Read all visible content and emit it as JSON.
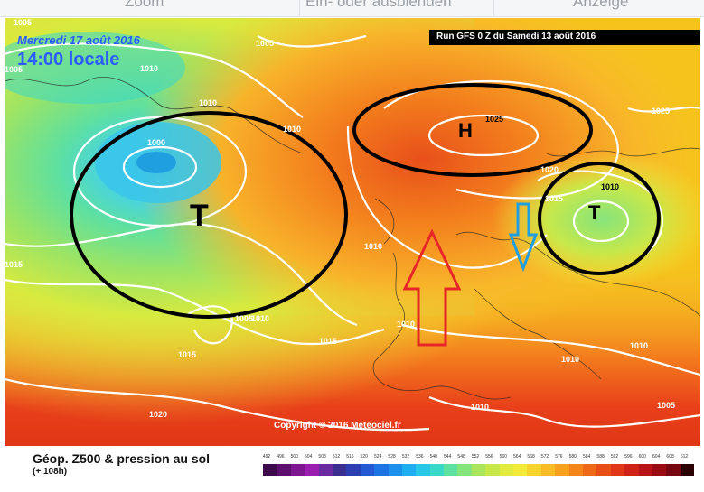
{
  "toolbar": {
    "items": [
      "Zoom",
      "Ein- oder ausblenden",
      "Anzeige"
    ]
  },
  "map": {
    "date_line": "Mercredi 17 août 2016",
    "time_line": "14:00 locale",
    "run_info": "Run GFS 0 Z du Samedi 13 août 2016",
    "copyright": "Copyright © 2016 Meteociel.fr",
    "high_symbol": "H",
    "low_symbol": "T",
    "isobar_labels": [
      "1005",
      "1005",
      "1010",
      "1005",
      "1000",
      "1010",
      "1010",
      "1025",
      "1025",
      "1020",
      "1015",
      "1010",
      "1015",
      "1010",
      "1010",
      "1005",
      "1010",
      "1015",
      "1015",
      "1010",
      "1010",
      "1020",
      "1010",
      "1005"
    ],
    "colors": {
      "background": "#f5c31a",
      "circle": "#000000",
      "arrow_up": "#e8262a",
      "arrow_down": "#1f9fe0",
      "isobar": "#ffffff",
      "date_text": "#2a5cff",
      "time_text": "#2a5cff"
    }
  },
  "legend": {
    "title": "Géop. Z500 & pression au sol",
    "subtitle": "(+ 108h)",
    "scale_values": [
      "492",
      "496",
      "500",
      "504",
      "508",
      "512",
      "516",
      "520",
      "524",
      "528",
      "532",
      "536",
      "540",
      "544",
      "548",
      "552",
      "556",
      "560",
      "564",
      "568",
      "572",
      "576",
      "580",
      "584",
      "588",
      "592",
      "596",
      "600",
      "604",
      "608",
      "612"
    ],
    "scale_colors": [
      "#3c0a4a",
      "#5e0f6e",
      "#7d1790",
      "#9a1fae",
      "#6a2aa0",
      "#3a2f8f",
      "#2c3fb0",
      "#2458d0",
      "#1e74e3",
      "#1d90ec",
      "#21aef0",
      "#29c7e6",
      "#3ad8c8",
      "#5ee0a0",
      "#86e47c",
      "#a9e65c",
      "#c8e84a",
      "#e2eb3e",
      "#f3ea3a",
      "#f7d52e",
      "#f8bd26",
      "#f7a11f",
      "#f4851a",
      "#ef6a18",
      "#e84f17",
      "#df3717",
      "#cf2218",
      "#b81418",
      "#9a0b14",
      "#760610",
      "#2a0205"
    ]
  }
}
